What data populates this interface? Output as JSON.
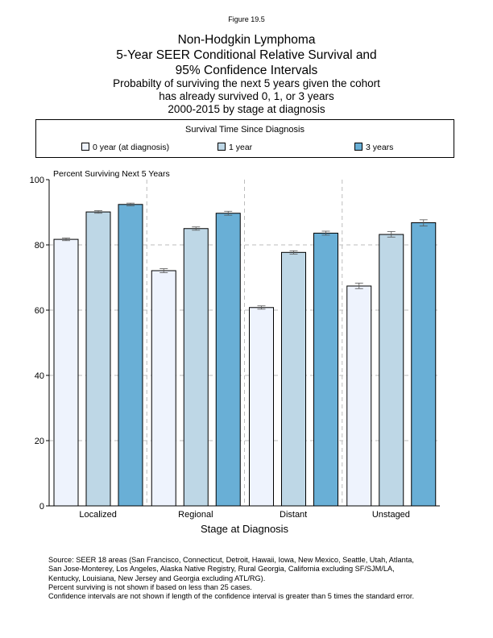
{
  "figure_label": "Figure 19.5",
  "title_lines": [
    "Non-Hodgkin Lymphoma",
    "5-Year SEER Conditional Relative Survival and",
    "95% Confidence Intervals"
  ],
  "subtitle_lines": [
    "Probabilty of surviving the next 5 years given the cohort",
    "has already survived 0, 1, or 3 years",
    "2000-2015 by stage at diagnosis"
  ],
  "legend": {
    "title": "Survival Time Since Diagnosis",
    "items": [
      {
        "label": "0 year (at diagnosis)",
        "color": "#eef3fd"
      },
      {
        "label": "1 year",
        "color": "#bed7e6"
      },
      {
        "label": "3 years",
        "color": "#69afd6"
      }
    ]
  },
  "chart_data": {
    "type": "bar",
    "ylabel": "Percent Surviving Next 5 Years",
    "xlabel": "Stage at Diagnosis",
    "ylim": [
      0,
      100
    ],
    "yticks": [
      "0",
      "20",
      "40",
      "60",
      "80",
      "100"
    ],
    "categories": [
      "Localized",
      "Regional",
      "Distant",
      "Unstaged"
    ],
    "series": [
      {
        "name": "0 year (at diagnosis)",
        "values": [
          81.7,
          72.1,
          60.8,
          67.4
        ],
        "ci_low": [
          81.3,
          71.5,
          60.3,
          66.6
        ],
        "ci_high": [
          82.1,
          72.7,
          61.3,
          68.3
        ]
      },
      {
        "name": "1 year",
        "values": [
          90.1,
          85.0,
          77.7,
          83.2
        ],
        "ci_low": [
          89.7,
          84.5,
          77.2,
          82.4
        ],
        "ci_high": [
          90.5,
          85.5,
          78.2,
          84.1
        ]
      },
      {
        "name": "3 years",
        "values": [
          92.4,
          89.7,
          83.6,
          86.8
        ],
        "ci_low": [
          92.0,
          89.1,
          83.0,
          85.8
        ],
        "ci_high": [
          92.8,
          90.3,
          84.2,
          87.7
        ]
      }
    ],
    "grid": true,
    "legend_position": "top"
  },
  "footnotes": [
    "Source:  SEER 18 areas (San Francisco, Connecticut, Detroit, Hawaii, Iowa, New Mexico, Seattle, Utah, Atlanta,",
    "San Jose-Monterey, Los Angeles, Alaska Native Registry, Rural Georgia, California excluding SF/SJM/LA,",
    "Kentucky, Louisiana, New Jersey and Georgia excluding ATL/RG).",
    "Percent surviving is not shown if based on less than 25 cases.",
    "Confidence intervals are not shown if length of the confidence interval is greater than 5 times the standard error."
  ]
}
